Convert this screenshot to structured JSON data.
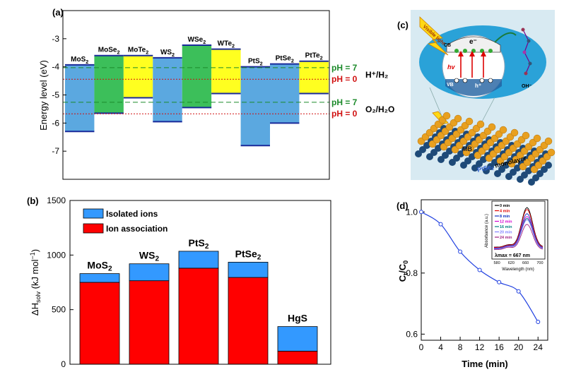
{
  "panels": {
    "a": "(a)",
    "b": "(b)",
    "c": "(c)",
    "d": "(d)"
  },
  "chart_data": [
    {
      "panel": "a",
      "type": "bar",
      "ylabel": "Energy level (eV)",
      "ylim": [
        -8,
        -2
      ],
      "yticks": [
        "-3",
        "-4",
        "-5",
        "-6",
        "-7"
      ],
      "tick_values": [
        -3,
        -4,
        -5,
        -6,
        -7
      ],
      "categories": [
        "MoS₂",
        "MoSe₂",
        "MoTe₂",
        "WS₂",
        "WSe₂",
        "WTe₂",
        "PtS₂",
        "PtSe₂",
        "PtTe₂"
      ],
      "cbm": [
        -3.93,
        -3.6,
        -3.6,
        -3.68,
        -3.23,
        -3.37,
        -4.0,
        -3.9,
        -3.8
      ],
      "vbm": [
        -6.3,
        -5.65,
        -5.1,
        -5.95,
        -5.45,
        -4.95,
        -6.8,
        -6.0,
        -4.95
      ],
      "band_colors": [
        "#5ba8e0",
        "#3cbf5a",
        "#ffff20",
        "#5ba8e0",
        "#3cbf5a",
        "#ffff20",
        "#5ba8e0",
        "#5ba8e0",
        "#ffff20"
      ],
      "reference_lines": [
        {
          "label": "pH = 7",
          "value": -4.03,
          "color": "#1b8a2a"
        },
        {
          "label": "pH = 0",
          "value": -4.44,
          "color": "#d01010"
        },
        {
          "label": "pH = 7",
          "value": -5.26,
          "color": "#1b8a2a"
        },
        {
          "label": "pH = 0",
          "value": -5.67,
          "color": "#d01010"
        }
      ],
      "couple_labels": [
        "H⁺/H₂",
        "O₂/H₂O"
      ]
    },
    {
      "panel": "b",
      "type": "bar",
      "ylabel": "ΔH_solv (kJ mol⁻¹)",
      "ylim": [
        0,
        1500
      ],
      "yticks": [
        "0",
        "500",
        "1000",
        "1500"
      ],
      "tick_values": [
        0,
        500,
        1000,
        1500
      ],
      "categories": [
        "MoS₂",
        "WS₂",
        "PtS₂",
        "PtSe₂",
        "HgS"
      ],
      "series": [
        {
          "name": "Ion association",
          "color": "#ff0000",
          "values": [
            750,
            765,
            880,
            795,
            120
          ]
        },
        {
          "name": "Isolated ions",
          "color": "#3399ff",
          "values": [
            80,
            155,
            155,
            140,
            225
          ]
        }
      ],
      "legend": "top-left"
    },
    {
      "panel": "d",
      "type": "line",
      "xlabel": "Time (min)",
      "ylabel": "Cₜ/C₀",
      "xlim": [
        0,
        26
      ],
      "ylim": [
        0.58,
        1.04
      ],
      "xticks": [
        "0",
        "4",
        "8",
        "12",
        "16",
        "20",
        "24"
      ],
      "xtick_values": [
        0,
        4,
        8,
        12,
        16,
        20,
        24
      ],
      "yticks": [
        "0.6",
        "0.8",
        "1.0"
      ],
      "ytick_values": [
        0.6,
        0.8,
        1.0
      ],
      "x": [
        0,
        4,
        8,
        12,
        16,
        20,
        24
      ],
      "y": [
        1.0,
        0.96,
        0.87,
        0.81,
        0.77,
        0.74,
        0.64
      ],
      "inset": {
        "xlabel": "Wavelength (nm)",
        "ylabel": "Absorbance (a.u.)",
        "xticks": [
          "580",
          "620",
          "660",
          "700"
        ],
        "xtick_values": [
          580,
          620,
          660,
          700
        ],
        "xlim": [
          570,
          710
        ],
        "annotation": "λmax = 667 nm",
        "series": [
          {
            "name": "0 min",
            "color": "#000000",
            "peak": 1.0
          },
          {
            "name": "4 min",
            "color": "#e00000",
            "peak": 0.96
          },
          {
            "name": "8 min",
            "color": "#1030c0",
            "peak": 0.87
          },
          {
            "name": "12 min",
            "color": "#d000d0",
            "peak": 0.81
          },
          {
            "name": "16 min",
            "color": "#008080",
            "peak": 0.77
          },
          {
            "name": "20 min",
            "color": "#8080ff",
            "peak": 0.74
          },
          {
            "name": "24 min",
            "color": "#a02080",
            "peak": 0.64
          }
        ]
      }
    }
  ],
  "illustration": {
    "visible_light": "Visible light",
    "cb": "CB",
    "vb": "VB",
    "electron": "e⁻",
    "hole": "h⁺",
    "hv": "hv",
    "oh": "OH⁻",
    "mb": "MB",
    "monolayer_prefix": "PtSe",
    "monolayer_sub": "2",
    "monolayer_suffix": " monolayer"
  }
}
